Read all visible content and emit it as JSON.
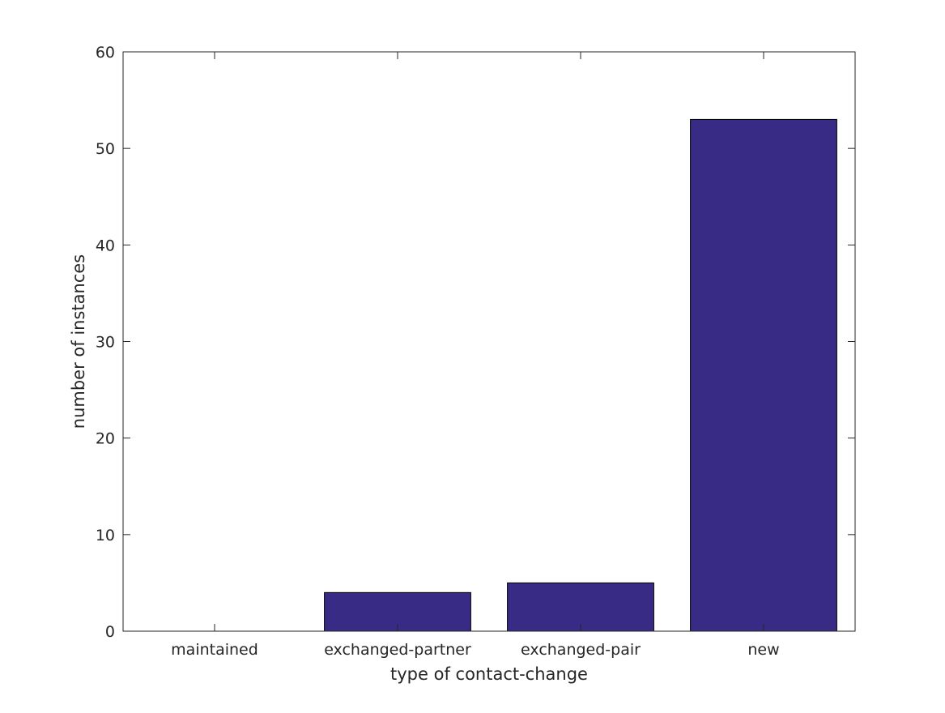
{
  "chart_data": {
    "type": "bar",
    "title": "",
    "xlabel": "type of contact-change",
    "ylabel": "number of instances",
    "categories": [
      "maintained",
      "exchanged-partner",
      "exchanged-pair",
      "new"
    ],
    "values": [
      0,
      4,
      5,
      53
    ],
    "ylim": [
      0,
      60
    ],
    "yticks": [
      0,
      10,
      20,
      30,
      40,
      50,
      60
    ],
    "grid": false,
    "legend": "none",
    "bar_color": "#372b86",
    "bar_edge_color": "#000000"
  }
}
